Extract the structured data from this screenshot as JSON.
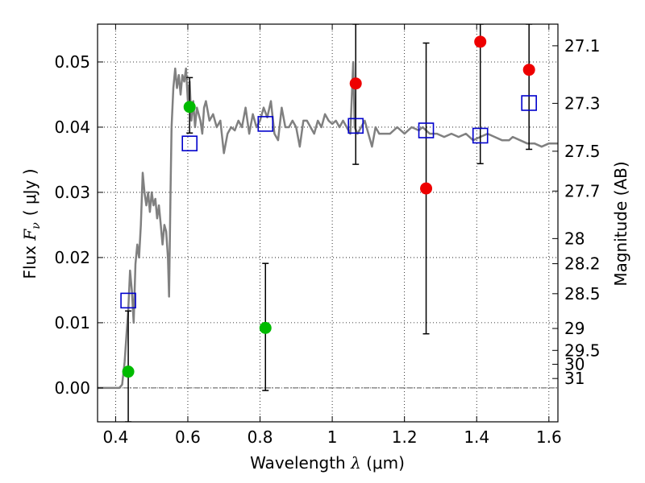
{
  "chart_data": {
    "type": "scatter",
    "xlabel": {
      "prefix": "Wavelength ",
      "symbol": "λ",
      "unit": " (μm)"
    },
    "ylabel": {
      "prefix": "Flux ",
      "symbol": "F",
      "subscript": "ν",
      "unit": "( μJy )"
    },
    "ylabel_right": "Magnitude (AB)",
    "xlim": [
      0.35,
      1.625
    ],
    "ylim": [
      -0.0052,
      0.0558
    ],
    "grid": true,
    "x_ticks": [
      {
        "value": 0.4,
        "label": "0.4"
      },
      {
        "value": 0.6,
        "label": "0.6"
      },
      {
        "value": 0.8,
        "label": "0.8"
      },
      {
        "value": 1.0,
        "label": "1"
      },
      {
        "value": 1.2,
        "label": "1.2"
      },
      {
        "value": 1.4,
        "label": "1.4"
      },
      {
        "value": 1.6,
        "label": "1.6"
      }
    ],
    "y_ticks": [
      {
        "value": 0.0,
        "label": "0.00"
      },
      {
        "value": 0.01,
        "label": "0.01"
      },
      {
        "value": 0.02,
        "label": "0.02"
      },
      {
        "value": 0.03,
        "label": "0.03"
      },
      {
        "value": 0.04,
        "label": "0.04"
      },
      {
        "value": 0.05,
        "label": "0.05"
      }
    ],
    "mag_ticks": [
      {
        "value": 27.1,
        "label": "27.1"
      },
      {
        "value": 27.3,
        "label": "27.3"
      },
      {
        "value": 27.5,
        "label": "27.5"
      },
      {
        "value": 27.7,
        "label": "27.7"
      },
      {
        "value": 28,
        "label": "28"
      },
      {
        "value": 28.2,
        "label": "28.2"
      },
      {
        "value": 28.5,
        "label": "28.5"
      },
      {
        "value": 29,
        "label": "29"
      },
      {
        "value": 29.5,
        "label": "29.5"
      },
      {
        "value": 30,
        "label": "30"
      },
      {
        "value": 31,
        "label": "31"
      }
    ],
    "model_spectrum": {
      "color": "#808080",
      "x": [
        0.35,
        0.41,
        0.418,
        0.425,
        0.43,
        0.435,
        0.44,
        0.445,
        0.45,
        0.455,
        0.46,
        0.465,
        0.47,
        0.475,
        0.48,
        0.485,
        0.49,
        0.495,
        0.5,
        0.505,
        0.51,
        0.515,
        0.52,
        0.525,
        0.53,
        0.535,
        0.54,
        0.545,
        0.548,
        0.552,
        0.555,
        0.56,
        0.565,
        0.57,
        0.575,
        0.58,
        0.585,
        0.59,
        0.595,
        0.6,
        0.605,
        0.61,
        0.615,
        0.62,
        0.625,
        0.63,
        0.635,
        0.64,
        0.645,
        0.65,
        0.66,
        0.67,
        0.68,
        0.69,
        0.7,
        0.71,
        0.72,
        0.73,
        0.74,
        0.75,
        0.76,
        0.77,
        0.78,
        0.79,
        0.8,
        0.81,
        0.82,
        0.83,
        0.84,
        0.85,
        0.86,
        0.87,
        0.88,
        0.89,
        0.9,
        0.91,
        0.92,
        0.93,
        0.94,
        0.95,
        0.96,
        0.97,
        0.98,
        0.99,
        1.0,
        1.01,
        1.02,
        1.03,
        1.04,
        1.05,
        1.058,
        1.062,
        1.07,
        1.08,
        1.09,
        1.1,
        1.11,
        1.12,
        1.13,
        1.14,
        1.16,
        1.18,
        1.2,
        1.22,
        1.24,
        1.25,
        1.27,
        1.29,
        1.31,
        1.33,
        1.35,
        1.37,
        1.39,
        1.41,
        1.43,
        1.45,
        1.47,
        1.49,
        1.5,
        1.52,
        1.54,
        1.56,
        1.58,
        1.6,
        1.625
      ],
      "y": [
        0.0,
        0.0,
        0.0005,
        0.004,
        0.008,
        0.012,
        0.018,
        0.015,
        0.01,
        0.019,
        0.022,
        0.02,
        0.025,
        0.033,
        0.03,
        0.028,
        0.03,
        0.027,
        0.03,
        0.028,
        0.029,
        0.026,
        0.028,
        0.025,
        0.022,
        0.025,
        0.024,
        0.02,
        0.014,
        0.03,
        0.04,
        0.046,
        0.049,
        0.046,
        0.048,
        0.045,
        0.048,
        0.047,
        0.049,
        0.044,
        0.047,
        0.041,
        0.044,
        0.04,
        0.043,
        0.042,
        0.041,
        0.039,
        0.043,
        0.044,
        0.041,
        0.042,
        0.04,
        0.041,
        0.036,
        0.039,
        0.04,
        0.0395,
        0.041,
        0.04,
        0.043,
        0.039,
        0.042,
        0.04,
        0.041,
        0.043,
        0.0415,
        0.044,
        0.039,
        0.038,
        0.043,
        0.04,
        0.04,
        0.041,
        0.04,
        0.037,
        0.041,
        0.041,
        0.04,
        0.039,
        0.041,
        0.04,
        0.042,
        0.041,
        0.0405,
        0.041,
        0.04,
        0.041,
        0.04,
        0.039,
        0.05,
        0.04,
        0.039,
        0.04,
        0.041,
        0.039,
        0.037,
        0.04,
        0.039,
        0.039,
        0.039,
        0.04,
        0.039,
        0.04,
        0.0395,
        0.04,
        0.039,
        0.039,
        0.0385,
        0.039,
        0.0385,
        0.039,
        0.038,
        0.0385,
        0.039,
        0.0385,
        0.038,
        0.038,
        0.0385,
        0.038,
        0.0375,
        0.0375,
        0.037,
        0.0375,
        0.0375
      ]
    },
    "series": [
      {
        "marker": "square-open",
        "color": "#0000cc",
        "x": [
          0.435,
          0.605,
          0.815,
          1.065,
          1.26,
          1.41,
          1.545
        ],
        "y": [
          0.0134,
          0.0375,
          0.0405,
          0.0402,
          0.0395,
          0.0387,
          0.0437
        ]
      },
      {
        "marker": "circle",
        "color": "#00bb00",
        "x": [
          0.435,
          0.605,
          0.815
        ],
        "y": [
          0.0025,
          0.0431,
          0.0092
        ],
        "yerr_low": [
          -0.0052,
          0.0391,
          -0.0004
        ],
        "yerr_high": [
          0.0118,
          0.0476,
          0.0191
        ]
      },
      {
        "marker": "circle",
        "color": "#ee0000",
        "x": [
          1.065,
          1.26,
          1.41,
          1.545
        ],
        "y": [
          0.0467,
          0.0306,
          0.0531,
          0.0488
        ],
        "yerr_low": [
          0.0343,
          0.0083,
          0.0344,
          0.0366
        ],
        "yerr_high": [
          0.0558,
          0.0529,
          0.0558,
          0.0558
        ]
      }
    ]
  }
}
